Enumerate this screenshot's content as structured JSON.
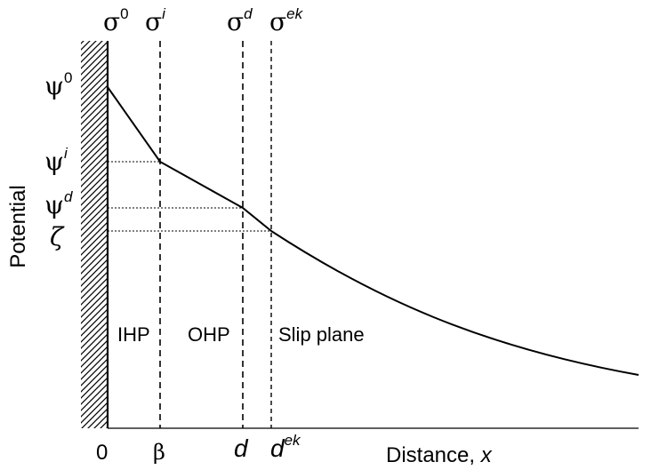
{
  "axes": {
    "ylabel": "Potential",
    "xlabel_text": "Distance, ",
    "xlabel_var": "x"
  },
  "top_labels": {
    "sigma": "σ",
    "sup_0": "0",
    "sup_i": "i",
    "sup_d": "d",
    "sup_ek": "ek"
  },
  "left_labels": {
    "psi": "ψ",
    "sup_0": "0",
    "sup_i": "i",
    "sup_d": "d",
    "zeta": "ζ"
  },
  "bottom_labels": {
    "zero": "0",
    "beta": "β",
    "d": "d",
    "dek_base": "d",
    "dek_sup": "ek"
  },
  "planes": {
    "ihp": "IHP",
    "ohp": "OHP",
    "slip": "Slip plane"
  }
}
